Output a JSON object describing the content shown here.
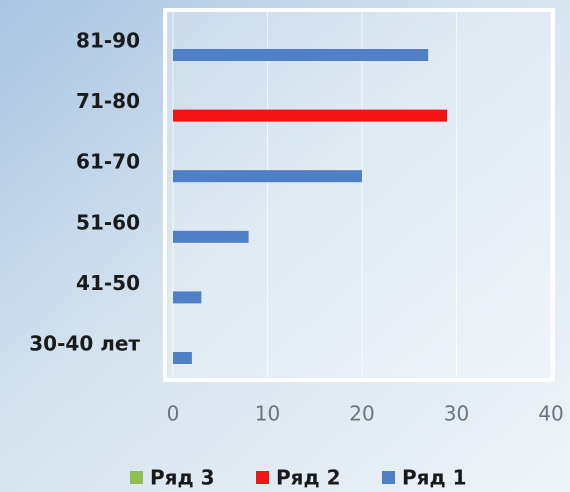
{
  "chart_data": {
    "type": "bar",
    "orientation": "horizontal",
    "categories": [
      "30-40 лет",
      "41-50",
      "51-60",
      "61-70",
      "71-80",
      "81-90"
    ],
    "series": [
      {
        "name": "Ряд 1",
        "color": "#4f7fc4",
        "values": [
          2,
          3,
          8,
          20,
          null,
          27
        ]
      },
      {
        "name": "Ряд 2",
        "color": "#f01414",
        "values": [
          null,
          null,
          null,
          null,
          29,
          null
        ]
      },
      {
        "name": "Ряд 3",
        "color": "#92c050",
        "values": [
          null,
          null,
          null,
          null,
          null,
          null
        ]
      }
    ],
    "xlim": [
      0,
      40
    ],
    "xticks": [
      0,
      10,
      20,
      30,
      40
    ],
    "grid": true
  }
}
